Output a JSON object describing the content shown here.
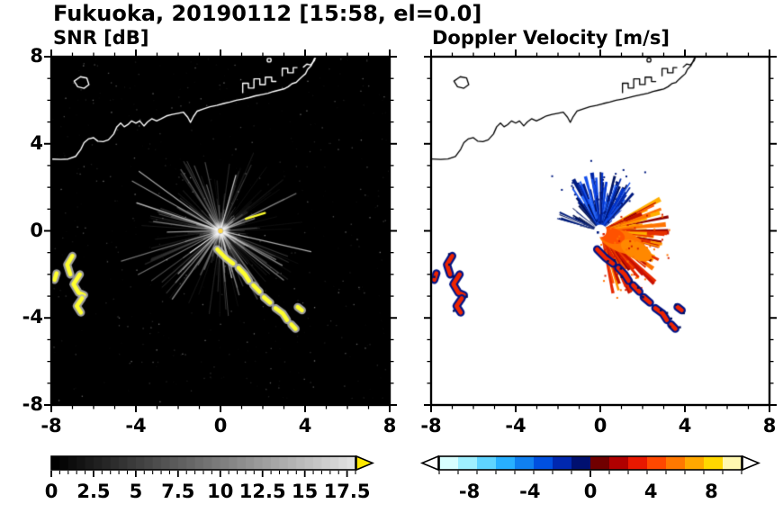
{
  "title": "Fukuoka, 20190112 [15:58, el=0.0]",
  "panels": [
    {
      "id": "snr",
      "title": "SNR [dB]",
      "background": "#000000",
      "coast_color": "#ffffff"
    },
    {
      "id": "doppler",
      "title": "Doppler Velocity [m/s]",
      "background": "#ffffff",
      "coast_color": "#000000"
    }
  ],
  "axes": {
    "xlim": [
      -8,
      8
    ],
    "ylim": [
      -8,
      8
    ],
    "xticks": [
      -8,
      -4,
      0,
      4,
      8
    ],
    "xtick_labels": [
      "-8",
      "-4",
      "0",
      "4",
      "8"
    ],
    "yticks": [
      8,
      4,
      0,
      -4,
      -8
    ],
    "ytick_labels": [
      "8",
      "4",
      "0",
      "-4",
      "-8"
    ],
    "minor_tick_step": 1
  },
  "chart_data": {
    "type": "heatmap",
    "subtype": "dual-panel radar PPI (plan position indicator)",
    "description": "Left panel: radar SNR in dB on black background with radial beam starburst from radar at origin, yellow high-SNR echo arcs at lower-left and along a diagonal chain to lower-right, white coastline across top. Right panel: Doppler velocity with blue (toward, negative) fan pointing up and red/orange (away, positive) fan pointing right/down-right from the radar at origin, same echo patches in red with navy fringes, black coastline.",
    "radar_center": [
      0,
      0
    ],
    "snr_colorbar": {
      "min": 0,
      "max": 18,
      "steps": 36,
      "gray_levels": [
        0,
        224
      ],
      "overflow_color": "#ffe800",
      "tick_values": [
        0,
        2.5,
        5,
        7.5,
        10,
        12.5,
        15,
        17.5
      ],
      "tick_labels": [
        "0",
        "2.5",
        "5",
        "7.5",
        "10",
        "12.5",
        "15",
        "17.5"
      ]
    },
    "velocity_colorbar": {
      "min": -10,
      "max": 10,
      "colors": [
        "#d8ffff",
        "#9ff0ff",
        "#5fd4ff",
        "#28b0ff",
        "#1080f0",
        "#0050e0",
        "#0028b0",
        "#001070",
        "#700000",
        "#b00000",
        "#e81800",
        "#ff4800",
        "#ff7800",
        "#ffa800",
        "#ffd800",
        "#fff8b0"
      ],
      "underflow_color": "#ffffff",
      "overflow_color": "#ffffff",
      "tick_values": [
        -8,
        -4,
        0,
        4,
        8
      ],
      "tick_labels": [
        "-8",
        "-4",
        "0",
        "4",
        "8"
      ]
    },
    "coastline": [
      [
        [
          -8.0,
          3.3
        ],
        [
          -7.55,
          3.28
        ],
        [
          -7.2,
          3.3
        ],
        [
          -6.85,
          3.42
        ],
        [
          -6.6,
          3.75
        ],
        [
          -6.45,
          4.05
        ],
        [
          -6.25,
          4.22
        ],
        [
          -6.0,
          4.28
        ],
        [
          -5.8,
          4.12
        ],
        [
          -5.55,
          4.1
        ],
        [
          -5.3,
          4.18
        ],
        [
          -5.05,
          4.45
        ],
        [
          -4.9,
          4.78
        ],
        [
          -4.72,
          4.95
        ],
        [
          -4.55,
          4.78
        ],
        [
          -4.38,
          4.88
        ],
        [
          -4.2,
          5.05
        ],
        [
          -4.0,
          4.95
        ],
        [
          -3.82,
          5.05
        ],
        [
          -3.62,
          4.82
        ],
        [
          -3.45,
          5.0
        ],
        [
          -3.25,
          5.15
        ],
        [
          -3.02,
          5.05
        ],
        [
          -2.8,
          5.15
        ],
        [
          -2.55,
          5.28
        ],
        [
          -2.28,
          5.35
        ],
        [
          -2.0,
          5.4
        ],
        [
          -1.75,
          5.45
        ],
        [
          -1.55,
          5.22
        ],
        [
          -1.42,
          4.98
        ],
        [
          -1.28,
          5.25
        ],
        [
          -1.1,
          5.5
        ],
        [
          -0.82,
          5.6
        ],
        [
          -0.5,
          5.7
        ],
        [
          -0.18,
          5.76
        ],
        [
          0.15,
          5.85
        ],
        [
          0.45,
          5.92
        ],
        [
          0.75,
          6.0
        ],
        [
          1.05,
          6.05
        ],
        [
          1.35,
          6.12
        ],
        [
          1.65,
          6.2
        ],
        [
          1.95,
          6.26
        ],
        [
          2.25,
          6.32
        ],
        [
          2.5,
          6.4
        ],
        [
          2.75,
          6.46
        ],
        [
          3.0,
          6.52
        ],
        [
          3.2,
          6.62
        ],
        [
          3.38,
          6.76
        ],
        [
          3.58,
          6.82
        ],
        [
          3.72,
          6.96
        ],
        [
          3.88,
          7.1
        ],
        [
          4.02,
          7.22
        ],
        [
          4.12,
          7.42
        ],
        [
          4.28,
          7.58
        ],
        [
          4.38,
          7.78
        ],
        [
          4.48,
          8.0
        ]
      ],
      [
        [
          1.05,
          6.35
        ],
        [
          1.05,
          6.78
        ],
        [
          1.32,
          6.78
        ],
        [
          1.32,
          6.56
        ],
        [
          1.58,
          6.56
        ],
        [
          1.58,
          6.98
        ],
        [
          1.86,
          6.98
        ],
        [
          1.86,
          6.72
        ],
        [
          2.12,
          6.72
        ],
        [
          2.12,
          7.06
        ],
        [
          2.42,
          7.06
        ],
        [
          2.42,
          6.86
        ],
        [
          2.62,
          6.86
        ]
      ],
      [
        [
          2.92,
          7.12
        ],
        [
          2.92,
          7.46
        ],
        [
          3.18,
          7.46
        ],
        [
          3.18,
          7.26
        ],
        [
          3.44,
          7.26
        ],
        [
          3.44,
          7.5
        ],
        [
          3.62,
          7.5
        ]
      ],
      [
        [
          -6.92,
          6.88
        ],
        [
          -6.62,
          7.08
        ],
        [
          -6.32,
          7.02
        ],
        [
          -6.22,
          6.72
        ],
        [
          -6.45,
          6.55
        ],
        [
          -6.75,
          6.62
        ],
        [
          -6.92,
          6.88
        ]
      ],
      [
        [
          3.92,
          7.52
        ],
        [
          4.08,
          7.66
        ],
        [
          4.26,
          7.62
        ],
        [
          4.44,
          7.82
        ],
        [
          4.5,
          8.0
        ]
      ]
    ],
    "islet": [
      2.3,
      7.85
    ],
    "echo_curves": [
      {
        "pts": [
          [
            -7.0,
            -1.15
          ],
          [
            -7.25,
            -1.55
          ],
          [
            -7.1,
            -2.0
          ]
        ]
      },
      {
        "pts": [
          [
            -6.65,
            -2.0
          ],
          [
            -6.95,
            -2.45
          ],
          [
            -6.7,
            -2.85
          ],
          [
            -6.45,
            -2.95
          ]
        ]
      },
      {
        "pts": [
          [
            -6.55,
            -3.1
          ],
          [
            -6.8,
            -3.45
          ],
          [
            -6.6,
            -3.75
          ]
        ]
      },
      {
        "pts": [
          [
            -7.75,
            -1.95
          ],
          [
            -7.85,
            -2.25
          ]
        ]
      },
      {
        "pts": [
          [
            -0.15,
            -0.85
          ],
          [
            0.25,
            -1.25
          ],
          [
            0.6,
            -1.5
          ]
        ]
      },
      {
        "pts": [
          [
            0.85,
            -1.7
          ],
          [
            1.15,
            -2.0
          ],
          [
            1.35,
            -2.3
          ]
        ]
      },
      {
        "pts": [
          [
            1.55,
            -2.5
          ],
          [
            1.85,
            -2.8
          ]
        ]
      },
      {
        "pts": [
          [
            2.05,
            -3.05
          ],
          [
            2.35,
            -3.3
          ]
        ]
      },
      {
        "pts": [
          [
            2.6,
            -3.55
          ],
          [
            2.95,
            -3.8
          ],
          [
            3.15,
            -4.1
          ]
        ]
      },
      {
        "pts": [
          [
            3.35,
            -4.3
          ],
          [
            3.55,
            -4.5
          ]
        ]
      },
      {
        "pts": [
          [
            3.65,
            -3.5
          ],
          [
            3.85,
            -3.65
          ]
        ]
      },
      {
        "pts": [
          [
            1.2,
            0.55
          ],
          [
            2.1,
            0.82
          ]
        ],
        "thin": true,
        "snr_only": true
      }
    ],
    "snr_field": {
      "seed": 1234,
      "noise_dots": 520,
      "ray_count": 270,
      "bright_ray_count": 18,
      "long_rays": [
        {
          "angle_deg": 197,
          "len": 4.9
        },
        {
          "angle_deg": 208,
          "len": 4.4
        },
        {
          "angle_deg": 172,
          "len": 3.2
        }
      ]
    },
    "doppler_field": {
      "seed": 4242,
      "speck_count": 90,
      "center_hole_radius_px": 7,
      "blue_fan": {
        "from_deg": 52,
        "to_deg": 128,
        "count": 175,
        "min_len": 0.5,
        "max_len": 2.8,
        "width_deg": 1.6,
        "colors": [
          "#00125e",
          "#001a80",
          "#0026a8",
          "#0034d0",
          "#1550ec",
          "#2a6cff"
        ]
      },
      "navy_spikes": {
        "from_deg": 124,
        "to_deg": 170,
        "count": 26,
        "min_len": 0.4,
        "max_len": 2.2,
        "width_deg": 1.2,
        "colors": [
          "#00104f",
          "#001c7a"
        ]
      },
      "blue_spikes_right": {
        "from_deg": 40,
        "to_deg": 54,
        "count": 10,
        "min_len": 0.6,
        "max_len": 2.4,
        "width_deg": 1.2,
        "colors": [
          "#001a80",
          "#0030c0"
        ]
      },
      "orange_fan": {
        "from_deg": -78,
        "to_deg": 28,
        "count": 240,
        "min_len": 0.4,
        "max_len": 3.3,
        "width_deg": 1.6,
        "colors": [
          "#8c0000",
          "#c01000",
          "#e63000",
          "#ff5200",
          "#ff7400",
          "#ff9600",
          "#ffb000"
        ]
      },
      "red_spikes": {
        "from_deg": -80,
        "to_deg": -42,
        "count": 16,
        "min_len": 2.0,
        "max_len": 3.6,
        "width_deg": 1.1,
        "colors": [
          "#c81000",
          "#e62800"
        ]
      },
      "core_blobs": [
        {
          "cx": 1.05,
          "cy": -0.5,
          "rx": 1.15,
          "ry": 0.5,
          "rot_deg": -20,
          "color": "#ff7400"
        },
        {
          "cx": 0.55,
          "cy": -0.22,
          "rx": 0.62,
          "ry": 0.36,
          "rot_deg": -15,
          "color": "#ff5200"
        },
        {
          "cx": 1.7,
          "cy": -0.9,
          "rx": 0.8,
          "ry": 0.4,
          "rot_deg": -28,
          "color": "#ff8800"
        }
      ]
    }
  }
}
